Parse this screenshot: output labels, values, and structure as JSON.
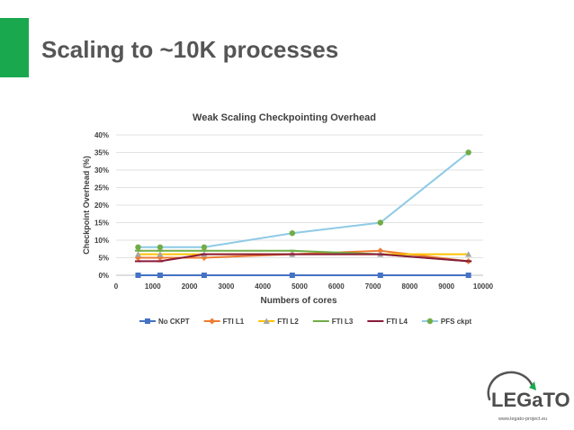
{
  "slide": {
    "title": "Scaling to ~10K processes",
    "accent_color": "#1aa84f"
  },
  "logo": {
    "name": "LEGaTO",
    "url": "www.legato-project.eu"
  },
  "chart_data": {
    "type": "line",
    "title": "Weak Scaling Checkpointing Overhead",
    "xlabel": "Numbers of cores",
    "ylabel": "Checkpoint Overhead (%)",
    "xlim": [
      0,
      10000
    ],
    "ylim": [
      0,
      40
    ],
    "xticks": [
      "0",
      "1000",
      "2000",
      "3000",
      "4000",
      "5000",
      "6000",
      "7000",
      "8000",
      "9000",
      "10000"
    ],
    "yticks": [
      "0%",
      "5%",
      "10%",
      "15%",
      "20%",
      "25%",
      "30%",
      "35%",
      "40%"
    ],
    "grid": true,
    "legend_position": "bottom",
    "x": [
      600,
      1200,
      2400,
      4800,
      7200,
      9600
    ],
    "series": [
      {
        "name": "No CKPT",
        "color": "#4472c4",
        "marker": "square",
        "values": [
          0,
          0,
          0,
          0,
          0,
          0
        ]
      },
      {
        "name": "FTI L1",
        "color": "#ed7d31",
        "marker": "diamond",
        "values": [
          5,
          5,
          5,
          6,
          7,
          4
        ]
      },
      {
        "name": "FTI L2",
        "color": "#ffc000",
        "marker": "triangle",
        "values": [
          6,
          6,
          6,
          6,
          6,
          6
        ]
      },
      {
        "name": "FTI L3",
        "color": "#70ad47",
        "marker": "dash",
        "values": [
          7,
          7,
          7,
          7,
          6,
          4
        ]
      },
      {
        "name": "FTI L4",
        "color": "#8b1a3a",
        "marker": "dash",
        "values": [
          4,
          4,
          6,
          6,
          6,
          4
        ]
      },
      {
        "name": "PFS ckpt",
        "color": "#8ecae6",
        "marker": "circle",
        "values": [
          8,
          8,
          8,
          12,
          15,
          35
        ]
      }
    ]
  }
}
